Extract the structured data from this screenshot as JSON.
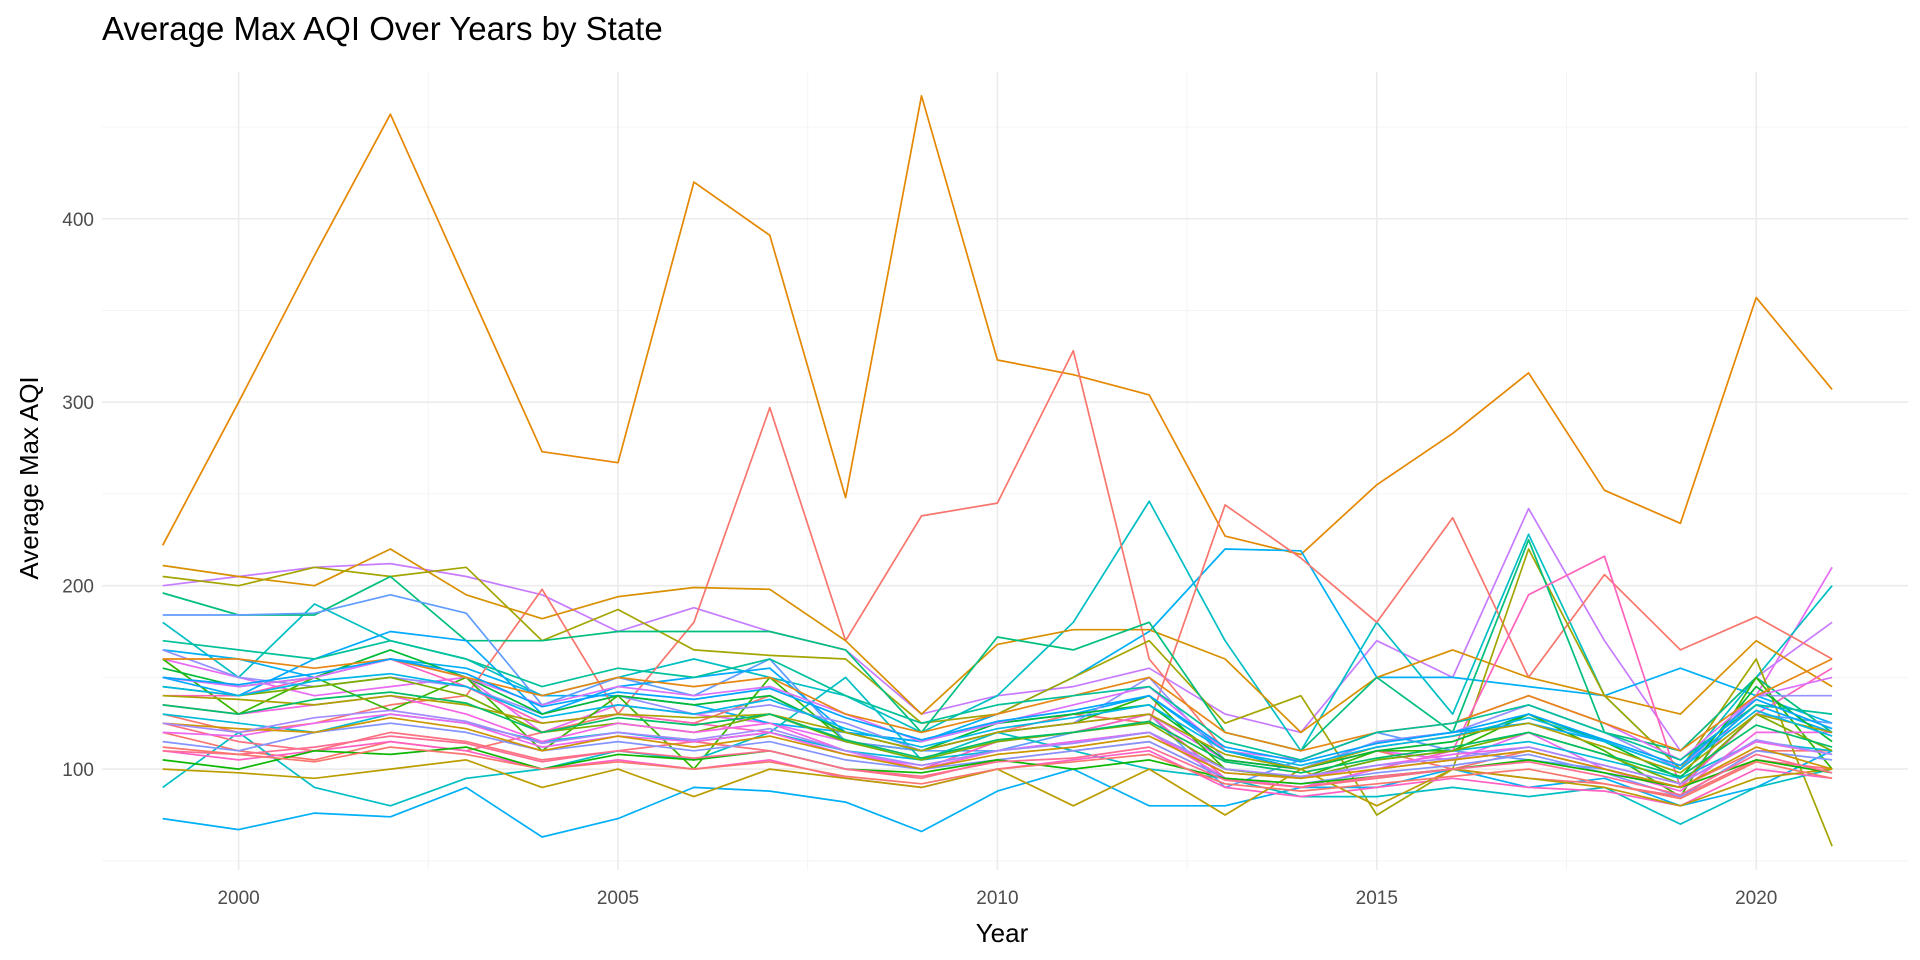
{
  "chart_data": {
    "type": "line",
    "title": "Average Max AQI Over Years by State",
    "xlabel": "Year",
    "ylabel": "Average Max AQI",
    "xlim": [
      1998.2,
      2022.0
    ],
    "ylim": [
      45,
      480
    ],
    "x_ticks": [
      2000,
      2005,
      2010,
      2015,
      2020
    ],
    "y_ticks": [
      100,
      200,
      300,
      400
    ],
    "grid": true,
    "legend": "none",
    "x": [
      1999,
      2000,
      2001,
      2002,
      2003,
      2004,
      2005,
      2006,
      2007,
      2008,
      2009,
      2010,
      2011,
      2012,
      2013,
      2014,
      2015,
      2016,
      2017,
      2018,
      2019,
      2020,
      2021
    ],
    "series": [
      {
        "color": "#E58700",
        "values": [
          222,
          300,
          380,
          457,
          365,
          273,
          267,
          420,
          391,
          248,
          467,
          323,
          315,
          304,
          227,
          217,
          255,
          283,
          316,
          252,
          234,
          357,
          307
        ]
      },
      {
        "color": "#E76BF3",
        "values": [
          160,
          150,
          140,
          145,
          150,
          120,
          135,
          130,
          125,
          115,
          110,
          120,
          125,
          130,
          105,
          100,
          110,
          105,
          120,
          100,
          90,
          140,
          210
        ]
      },
      {
        "color": "#C77CFF",
        "values": [
          200,
          205,
          210,
          212,
          205,
          195,
          175,
          188,
          175,
          165,
          130,
          140,
          145,
          155,
          130,
          120,
          170,
          150,
          242,
          170,
          110,
          150,
          180
        ]
      },
      {
        "color": "#00BFC4",
        "values": [
          180,
          150,
          190,
          170,
          160,
          140,
          150,
          160,
          150,
          140,
          120,
          140,
          180,
          246,
          170,
          110,
          180,
          130,
          228,
          140,
          100,
          150,
          200
        ]
      },
      {
        "color": "#00B0F6",
        "values": [
          165,
          160,
          150,
          160,
          155,
          140,
          140,
          135,
          125,
          120,
          115,
          130,
          150,
          175,
          220,
          219,
          150,
          150,
          145,
          140,
          155,
          140,
          125
        ]
      },
      {
        "color": "#F8766D",
        "values": [
          130,
          120,
          125,
          135,
          140,
          198,
          130,
          125,
          140,
          120,
          110,
          120,
          130,
          125,
          244,
          215,
          180,
          237,
          150,
          206,
          165,
          183,
          160
        ]
      },
      {
        "color": "#F8766D",
        "values": [
          120,
          110,
          105,
          115,
          110,
          120,
          130,
          180,
          297,
          170,
          238,
          245,
          328,
          160,
          110,
          100,
          110,
          100,
          110,
          100,
          90,
          110,
          110
        ]
      },
      {
        "color": "#D89000",
        "values": [
          211,
          205,
          200,
          220,
          195,
          182,
          194,
          199,
          198,
          170,
          130,
          168,
          176,
          176,
          160,
          120,
          150,
          165,
          150,
          140,
          130,
          170,
          145
        ]
      },
      {
        "color": "#A3A500",
        "values": [
          205,
          200,
          210,
          205,
          210,
          170,
          187,
          165,
          162,
          160,
          125,
          130,
          150,
          170,
          125,
          140,
          75,
          100,
          220,
          140,
          100,
          160,
          58
        ]
      },
      {
        "color": "#00BF7D",
        "values": [
          196,
          184,
          184,
          205,
          170,
          170,
          175,
          175,
          175,
          165,
          120,
          172,
          165,
          180,
          120,
          110,
          150,
          120,
          225,
          120,
          110,
          150,
          120
        ]
      },
      {
        "color": "#39B600",
        "values": [
          160,
          130,
          150,
          132,
          150,
          110,
          140,
          100,
          150,
          115,
          110,
          120,
          125,
          140,
          100,
          95,
          110,
          110,
          130,
          110,
          85,
          150,
          100
        ]
      },
      {
        "color": "#619CFF",
        "values": [
          184,
          184,
          185,
          195,
          185,
          135,
          150,
          140,
          160,
          115,
          110,
          110,
          120,
          130,
          90,
          105,
          120,
          110,
          105,
          100,
          90,
          130,
          125
        ]
      },
      {
        "color": "#00B0F6",
        "values": [
          73,
          67,
          76,
          74,
          90,
          63,
          73,
          90,
          88,
          82,
          66,
          88,
          100,
          80,
          80,
          90,
          90,
          100,
          90,
          95,
          80,
          90,
          110
        ]
      },
      {
        "color": "#00BFC4",
        "values": [
          90,
          120,
          90,
          80,
          95,
          100,
          110,
          105,
          120,
          150,
          105,
          120,
          110,
          100,
          95,
          85,
          85,
          90,
          85,
          90,
          70,
          90,
          100
        ]
      },
      {
        "color": "#FF62BC",
        "values": [
          140,
          140,
          150,
          160,
          145,
          125,
          130,
          125,
          120,
          110,
          100,
          115,
          120,
          130,
          95,
          90,
          100,
          110,
          195,
          216,
          90,
          130,
          155
        ]
      },
      {
        "color": "#00A9FF",
        "values": [
          150,
          140,
          160,
          175,
          170,
          130,
          145,
          150,
          155,
          120,
          115,
          125,
          130,
          140,
          110,
          100,
          115,
          120,
          125,
          115,
          100,
          135,
          120
        ]
      },
      {
        "color": "#FF61C3",
        "values": [
          110,
          105,
          110,
          115,
          110,
          100,
          105,
          100,
          105,
          95,
          90,
          100,
          105,
          110,
          90,
          85,
          90,
          95,
          90,
          88,
          80,
          100,
          95
        ]
      },
      {
        "color": "#9590FF",
        "values": [
          165,
          150,
          145,
          150,
          145,
          130,
          140,
          130,
          135,
          125,
          110,
          120,
          125,
          150,
          105,
          100,
          115,
          120,
          135,
          120,
          100,
          140,
          140
        ]
      },
      {
        "color": "#FC717F",
        "values": [
          125,
          115,
          110,
          120,
          115,
          105,
          110,
          115,
          110,
          100,
          95,
          105,
          110,
          115,
          95,
          90,
          95,
          100,
          95,
          92,
          85,
          105,
          100
        ]
      },
      {
        "color": "#00BA38",
        "values": [
          155,
          145,
          150,
          165,
          150,
          130,
          140,
          135,
          140,
          120,
          110,
          125,
          130,
          135,
          105,
          100,
          110,
          115,
          130,
          115,
          95,
          145,
          115
        ]
      },
      {
        "color": "#BB9D00",
        "values": [
          100,
          98,
          95,
          100,
          105,
          90,
          100,
          85,
          100,
          95,
          90,
          100,
          80,
          100,
          75,
          100,
          80,
          100,
          95,
          90,
          80,
          95,
          100
        ]
      },
      {
        "color": "#DB72FB",
        "values": [
          150,
          145,
          150,
          160,
          150,
          135,
          145,
          140,
          145,
          130,
          115,
          125,
          135,
          145,
          110,
          105,
          120,
          125,
          140,
          125,
          105,
          140,
          150
        ]
      },
      {
        "color": "#00BCD8",
        "values": [
          130,
          125,
          120,
          130,
          125,
          115,
          120,
          115,
          120,
          110,
          105,
          110,
          115,
          120,
          100,
          95,
          105,
          110,
          115,
          105,
          95,
          115,
          110
        ]
      },
      {
        "color": "#7CAE00",
        "values": [
          145,
          140,
          145,
          150,
          140,
          120,
          125,
          120,
          130,
          115,
          105,
          115,
          120,
          125,
          100,
          95,
          105,
          110,
          120,
          108,
          92,
          130,
          110
        ]
      },
      {
        "color": "#E68613",
        "values": [
          160,
          160,
          155,
          160,
          150,
          140,
          150,
          145,
          150,
          130,
          120,
          130,
          140,
          150,
          120,
          110,
          120,
          125,
          140,
          125,
          110,
          140,
          160
        ]
      },
      {
        "color": "#00C19A",
        "values": [
          170,
          165,
          160,
          170,
          160,
          145,
          155,
          150,
          160,
          140,
          125,
          135,
          140,
          145,
          115,
          105,
          120,
          125,
          135,
          120,
          105,
          135,
          130
        ]
      },
      {
        "color": "#F564E3",
        "values": [
          135,
          130,
          135,
          140,
          130,
          115,
          125,
          120,
          125,
          110,
          100,
          110,
          115,
          120,
          95,
          90,
          100,
          105,
          110,
          100,
          88,
          120,
          120
        ]
      },
      {
        "color": "#8494FF",
        "values": [
          115,
          110,
          120,
          125,
          120,
          110,
          115,
          110,
          115,
          105,
          100,
          105,
          110,
          115,
          95,
          92,
          98,
          102,
          108,
          98,
          85,
          110,
          105
        ]
      },
      {
        "color": "#ABA300",
        "values": [
          140,
          138,
          135,
          140,
          135,
          125,
          130,
          128,
          130,
          120,
          110,
          120,
          125,
          130,
          108,
          100,
          112,
          118,
          125,
          112,
          98,
          130,
          120
        ]
      },
      {
        "color": "#0CB702",
        "values": [
          105,
          100,
          110,
          108,
          112,
          100,
          108,
          105,
          110,
          100,
          98,
          105,
          100,
          105,
          95,
          92,
          96,
          100,
          105,
          98,
          90,
          105,
          98
        ]
      },
      {
        "color": "#ED68ED",
        "values": [
          120,
          118,
          125,
          130,
          125,
          112,
          118,
          115,
          120,
          108,
          102,
          110,
          115,
          120,
          98,
          95,
          102,
          108,
          112,
          102,
          92,
          115,
          108
        ]
      },
      {
        "color": "#00B8E7",
        "values": [
          145,
          140,
          148,
          152,
          145,
          128,
          135,
          130,
          138,
          122,
          112,
          122,
          128,
          135,
          110,
          102,
          112,
          118,
          128,
          115,
          100,
          132,
          118
        ]
      },
      {
        "color": "#CD9600",
        "values": [
          125,
          122,
          120,
          128,
          122,
          110,
          118,
          112,
          118,
          108,
          100,
          108,
          112,
          118,
          98,
          95,
          100,
          105,
          110,
          100,
          90,
          112,
          100
        ]
      },
      {
        "color": "#FF6C91",
        "values": [
          110,
          108,
          112,
          118,
          114,
          104,
          110,
          106,
          110,
          100,
          96,
          104,
          106,
          112,
          94,
          90,
          96,
          100,
          104,
          96,
          86,
          108,
          98
        ]
      },
      {
        "color": "#00BE67",
        "values": [
          135,
          130,
          138,
          142,
          136,
          120,
          128,
          124,
          130,
          116,
          106,
          116,
          120,
          126,
          104,
          98,
          106,
          112,
          120,
          108,
          96,
          124,
          112
        ]
      },
      {
        "color": "#A58AFF",
        "values": [
          125,
          120,
          128,
          132,
          126,
          114,
          120,
          116,
          122,
          110,
          102,
          110,
          114,
          120,
          100,
          96,
          102,
          106,
          112,
          102,
          92,
          116,
          108
        ]
      },
      {
        "color": "#F8766D",
        "values": [
          112,
          108,
          104,
          112,
          108,
          100,
          104,
          100,
          104,
          96,
          92,
          100,
          104,
          108,
          92,
          88,
          92,
          96,
          100,
          92,
          84,
          104,
          95
        ]
      },
      {
        "color": "#00A5FF",
        "values": [
          150,
          146,
          152,
          160,
          152,
          134,
          142,
          138,
          144,
          128,
          116,
          126,
          132,
          140,
          112,
          104,
          114,
          120,
          130,
          116,
          102,
          138,
          122
        ]
      }
    ]
  }
}
